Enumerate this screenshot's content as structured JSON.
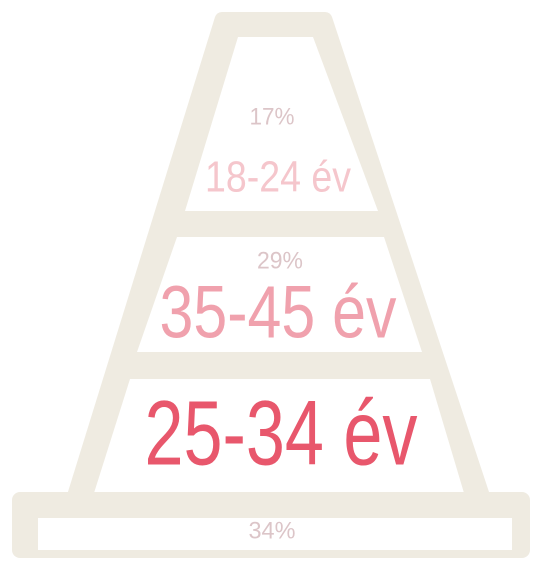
{
  "layers": [
    {
      "percent": "17%",
      "label": "18-24 év"
    },
    {
      "percent": "29%",
      "label": "35-45 év"
    },
    {
      "label": "25-34 év"
    }
  ],
  "base": {
    "percent": "34%"
  }
}
